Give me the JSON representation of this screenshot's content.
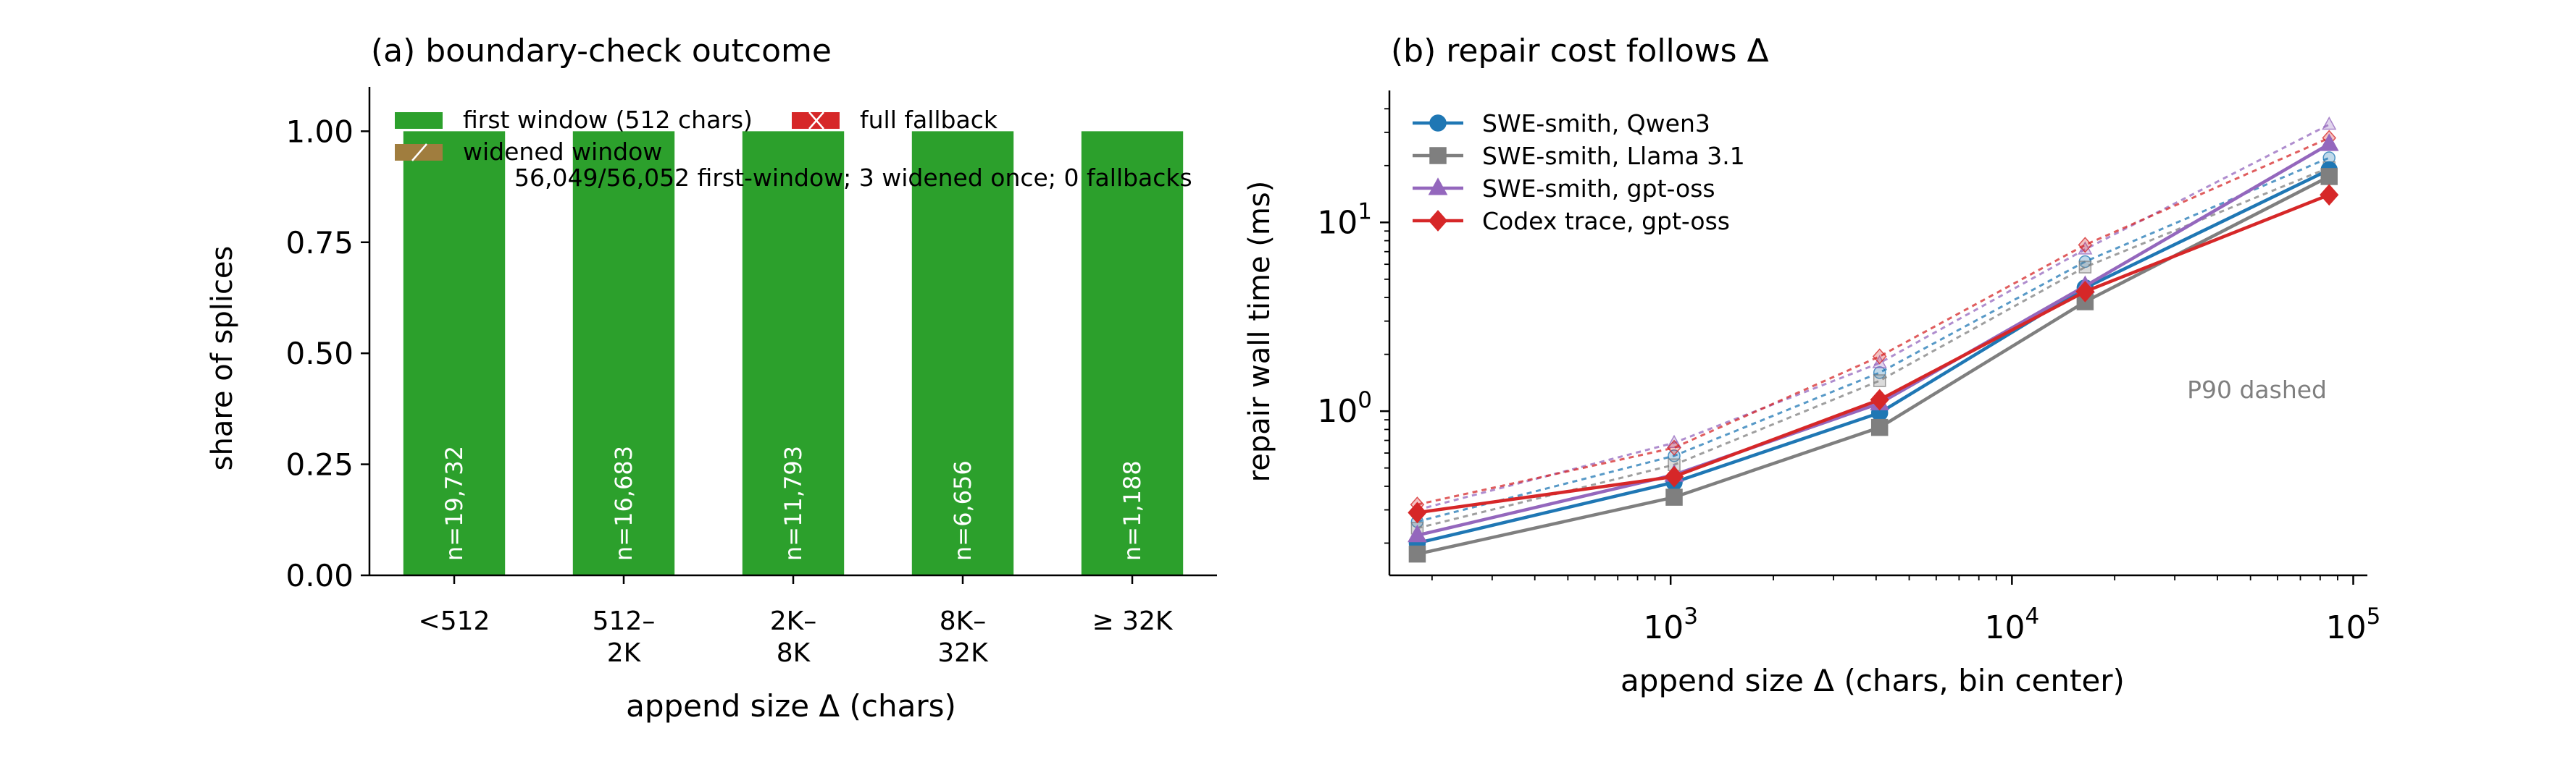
{
  "chart_data": [
    {
      "type": "bar",
      "title": "(a) boundary-check outcome",
      "xlabel": "append size Δ (chars)",
      "ylabel": "share of splices",
      "ylim": [
        0,
        1.0
      ],
      "yticks": [
        "0.00",
        "0.25",
        "0.50",
        "0.75",
        "1.00"
      ],
      "categories": [
        "<512",
        "512–\n2K",
        "2K–\n8K",
        "8K–\n32K",
        "≥ 32K"
      ],
      "bar_labels": [
        "n=19,732",
        "n=16,683",
        "n=11,793",
        "n=6,656",
        "n=1,188"
      ],
      "series": [
        {
          "name": "first window (512 chars)",
          "color": "#2ca02c",
          "values": [
            1.0,
            1.0,
            1.0,
            1.0,
            1.0
          ]
        },
        {
          "name": "widened window",
          "color": "#a07d3e",
          "values": [
            0,
            0,
            0,
            0,
            0
          ]
        },
        {
          "name": "full fallback",
          "color": "#d62728",
          "values": [
            0,
            0,
            0,
            0,
            0
          ]
        }
      ],
      "annotation": "56,049/56,052 first-window; 3 widened once; 0 fallbacks",
      "legend": "top-left",
      "grid": false
    },
    {
      "type": "line",
      "title": "(b) repair cost follows Δ",
      "xlabel": "append size Δ (chars, bin center)",
      "ylabel": "repair wall time (ms)",
      "xscale": "log",
      "yscale": "log",
      "xlim": [
        150,
        110000
      ],
      "ylim": [
        0.135,
        50
      ],
      "xticks": [
        {
          "value": 1000,
          "base": "10",
          "exp": "3"
        },
        {
          "value": 10000,
          "base": "10",
          "exp": "4"
        },
        {
          "value": 100000,
          "base": "10",
          "exp": "5"
        }
      ],
      "yticks": [
        {
          "value": 1,
          "base": "10",
          "exp": "0"
        },
        {
          "value": 10,
          "base": "10",
          "exp": "1"
        }
      ],
      "x": [
        181,
        1024,
        4096,
        16384,
        85000
      ],
      "series": [
        {
          "name": "SWE-smith, Qwen3",
          "color": "#1f77b4",
          "marker": "circle",
          "values": [
            0.2,
            0.42,
            0.98,
            4.5,
            19
          ],
          "p90": [
            0.26,
            0.58,
            1.6,
            6.2,
            22
          ]
        },
        {
          "name": "SWE-smith, Llama 3.1",
          "color": "#7f7f7f",
          "marker": "square",
          "values": [
            0.175,
            0.35,
            0.82,
            3.8,
            17.5
          ],
          "p90": [
            0.24,
            0.52,
            1.45,
            5.8,
            19.5
          ]
        },
        {
          "name": "SWE-smith, gpt-oss",
          "color": "#9467bd",
          "marker": "triangle",
          "values": [
            0.22,
            0.46,
            1.1,
            4.6,
            26
          ],
          "p90": [
            0.3,
            0.68,
            1.8,
            7.2,
            33
          ]
        },
        {
          "name": "Codex trace, gpt-oss",
          "color": "#d62728",
          "marker": "diamond",
          "values": [
            0.29,
            0.45,
            1.15,
            4.3,
            14
          ],
          "p90": [
            0.32,
            0.64,
            1.95,
            7.6,
            28
          ]
        }
      ],
      "annotation": "P90 dashed",
      "legend": "top-left",
      "grid": false
    }
  ]
}
